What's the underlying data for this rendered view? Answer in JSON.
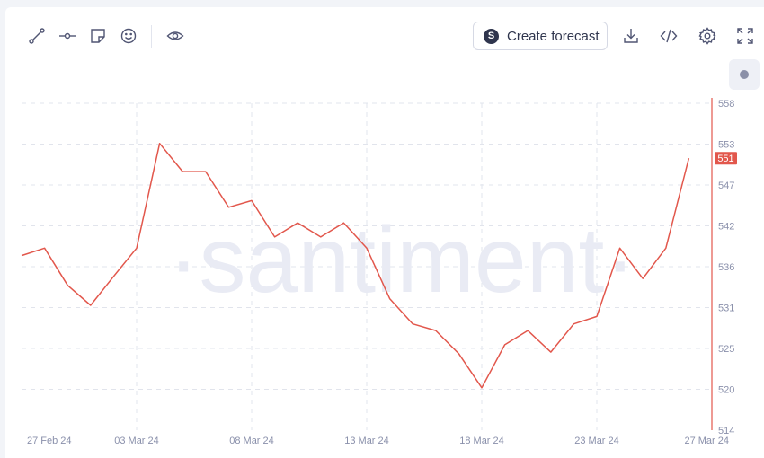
{
  "toolbar": {
    "forecast_label": "Create forecast",
    "forecast_logo": "S",
    "left_tools": [
      "line-draw-icon",
      "horizontal-line-icon",
      "note-icon",
      "emoji-icon",
      "eye-icon"
    ],
    "right_tools": [
      "download-icon",
      "embed-code-icon",
      "settings-icon",
      "fullscreen-icon"
    ]
  },
  "watermark": "·santiment·",
  "colors": {
    "line": "#e2574c",
    "axis": "#e2574c",
    "grid": "#e1e4ec",
    "tick": "#8a90ab",
    "watermark": "#e9ebf4"
  },
  "chart_data": {
    "type": "line",
    "x_tick_labels": [
      "27 Feb 24",
      "03 Mar 24",
      "08 Mar 24",
      "13 Mar 24",
      "18 Mar 24",
      "23 Mar 24",
      "27 Mar 24"
    ],
    "y_tick_labels": [
      "558",
      "553",
      "547",
      "542",
      "536",
      "531",
      "525",
      "520",
      "514"
    ],
    "ylim": [
      514,
      558
    ],
    "last_value_label": "551",
    "grid": true,
    "series": [
      {
        "values": [
          537.5,
          538.5,
          533.5,
          530.8,
          534.7,
          538.5,
          552.6,
          548.8,
          548.8,
          544.0,
          544.9,
          540.0,
          541.9,
          540.0,
          541.9,
          538.5,
          531.7,
          528.3,
          527.4,
          524.3,
          519.7,
          525.5,
          527.4,
          524.5,
          528.3,
          529.3,
          538.5,
          534.4,
          538.5,
          550.6
        ]
      }
    ]
  }
}
